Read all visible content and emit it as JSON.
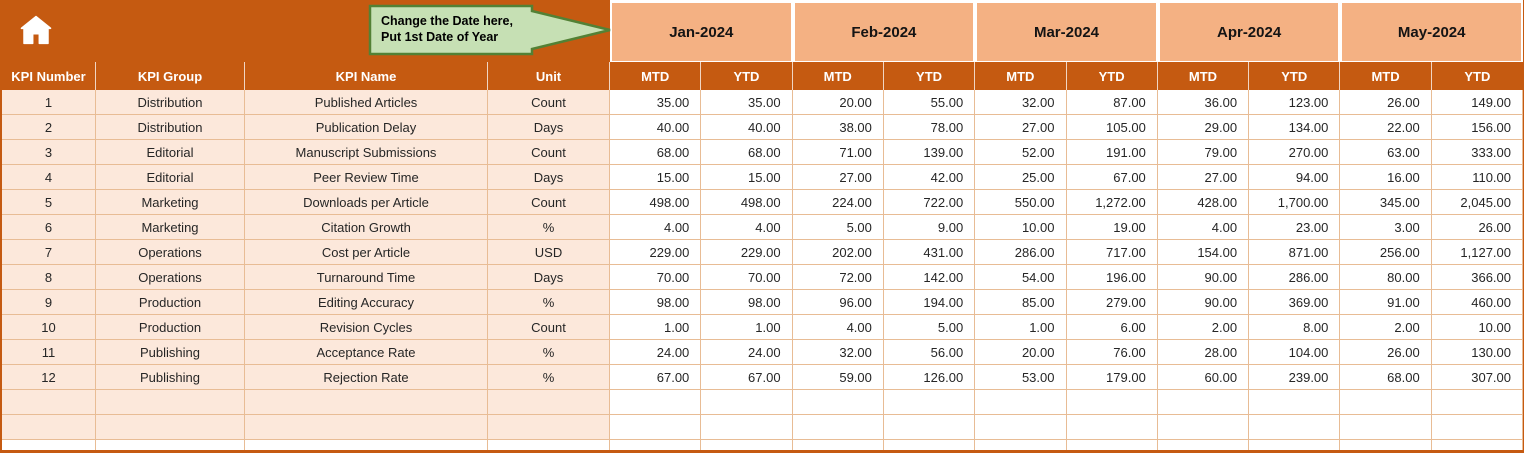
{
  "icons": {
    "home": "⌂"
  },
  "colors": {
    "rust": "#C55A11",
    "salmon": "#F4B183",
    "peach": "#FCE8DB",
    "grid_line": "#E8BC95",
    "callout_fill": "#C6E0B4",
    "callout_border": "#538135"
  },
  "callout": {
    "line1": "Change the Date here,",
    "line2": "Put 1st Date of Year"
  },
  "months": [
    "Jan-2024",
    "Feb-2024",
    "Mar-2024",
    "Apr-2024",
    "May-2024"
  ],
  "header": {
    "kpi_number": "KPI Number",
    "kpi_group": "KPI Group",
    "kpi_name": "KPI Name",
    "unit": "Unit",
    "mtd": "MTD",
    "ytd": "YTD"
  },
  "rows": [
    {
      "number": "1",
      "group": "Distribution",
      "name": "Published Articles",
      "unit": "Count",
      "values": [
        "35.00",
        "35.00",
        "20.00",
        "55.00",
        "32.00",
        "87.00",
        "36.00",
        "123.00",
        "26.00",
        "149.00"
      ]
    },
    {
      "number": "2",
      "group": "Distribution",
      "name": "Publication Delay",
      "unit": "Days",
      "values": [
        "40.00",
        "40.00",
        "38.00",
        "78.00",
        "27.00",
        "105.00",
        "29.00",
        "134.00",
        "22.00",
        "156.00"
      ]
    },
    {
      "number": "3",
      "group": "Editorial",
      "name": "Manuscript Submissions",
      "unit": "Count",
      "values": [
        "68.00",
        "68.00",
        "71.00",
        "139.00",
        "52.00",
        "191.00",
        "79.00",
        "270.00",
        "63.00",
        "333.00"
      ]
    },
    {
      "number": "4",
      "group": "Editorial",
      "name": "Peer Review Time",
      "unit": "Days",
      "values": [
        "15.00",
        "15.00",
        "27.00",
        "42.00",
        "25.00",
        "67.00",
        "27.00",
        "94.00",
        "16.00",
        "110.00"
      ]
    },
    {
      "number": "5",
      "group": "Marketing",
      "name": "Downloads per Article",
      "unit": "Count",
      "values": [
        "498.00",
        "498.00",
        "224.00",
        "722.00",
        "550.00",
        "1,272.00",
        "428.00",
        "1,700.00",
        "345.00",
        "2,045.00"
      ]
    },
    {
      "number": "6",
      "group": "Marketing",
      "name": "Citation Growth",
      "unit": "%",
      "values": [
        "4.00",
        "4.00",
        "5.00",
        "9.00",
        "10.00",
        "19.00",
        "4.00",
        "23.00",
        "3.00",
        "26.00"
      ]
    },
    {
      "number": "7",
      "group": "Operations",
      "name": "Cost per Article",
      "unit": "USD",
      "values": [
        "229.00",
        "229.00",
        "202.00",
        "431.00",
        "286.00",
        "717.00",
        "154.00",
        "871.00",
        "256.00",
        "1,127.00"
      ]
    },
    {
      "number": "8",
      "group": "Operations",
      "name": "Turnaround Time",
      "unit": "Days",
      "values": [
        "70.00",
        "70.00",
        "72.00",
        "142.00",
        "54.00",
        "196.00",
        "90.00",
        "286.00",
        "80.00",
        "366.00"
      ]
    },
    {
      "number": "9",
      "group": "Production",
      "name": "Editing Accuracy",
      "unit": "%",
      "values": [
        "98.00",
        "98.00",
        "96.00",
        "194.00",
        "85.00",
        "279.00",
        "90.00",
        "369.00",
        "91.00",
        "460.00"
      ]
    },
    {
      "number": "10",
      "group": "Production",
      "name": "Revision Cycles",
      "unit": "Count",
      "values": [
        "1.00",
        "1.00",
        "4.00",
        "5.00",
        "1.00",
        "6.00",
        "2.00",
        "8.00",
        "2.00",
        "10.00"
      ]
    },
    {
      "number": "11",
      "group": "Publishing",
      "name": "Acceptance Rate",
      "unit": "%",
      "values": [
        "24.00",
        "24.00",
        "32.00",
        "56.00",
        "20.00",
        "76.00",
        "28.00",
        "104.00",
        "26.00",
        "130.00"
      ]
    },
    {
      "number": "12",
      "group": "Publishing",
      "name": "Rejection Rate",
      "unit": "%",
      "values": [
        "67.00",
        "67.00",
        "59.00",
        "126.00",
        "53.00",
        "179.00",
        "60.00",
        "239.00",
        "68.00",
        "307.00"
      ]
    }
  ],
  "empty_row_count": 3
}
